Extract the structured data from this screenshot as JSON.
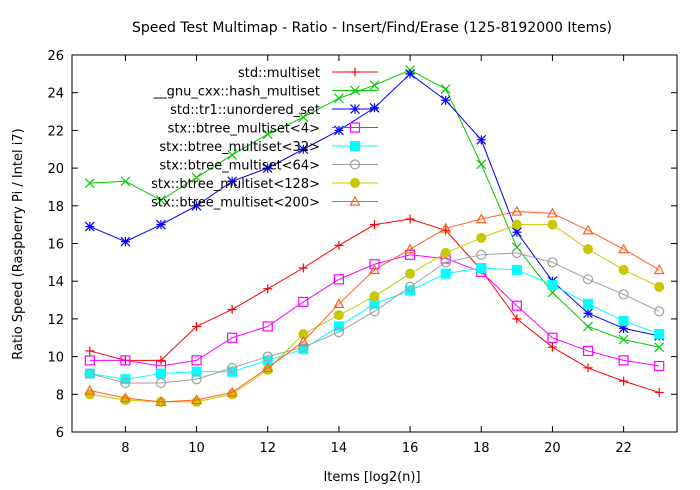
{
  "chart_data": {
    "type": "line",
    "title": "Speed Test Multimap - Ratio - Insert/Find/Erase (125-8192000 Items)",
    "xlabel": "Items [log2(n)]",
    "ylabel": "Ratio Speed (Raspberry Pi / Intel i7)",
    "xlim": [
      6.5,
      23.5
    ],
    "ylim": [
      6,
      26
    ],
    "xticks": [
      8,
      10,
      12,
      14,
      16,
      18,
      20,
      22
    ],
    "yticks": [
      6,
      8,
      10,
      12,
      14,
      16,
      18,
      20,
      22,
      24,
      26
    ],
    "legend_position": "top-left",
    "x": [
      7,
      8,
      9,
      10,
      11,
      12,
      13,
      14,
      15,
      16,
      17,
      18,
      19,
      20,
      21,
      22,
      23
    ],
    "series": [
      {
        "name": "std::multiset",
        "color": "#ff0000",
        "marker": "plus",
        "values": [
          10.3,
          9.8,
          9.8,
          11.6,
          12.5,
          13.6,
          14.7,
          15.9,
          17.0,
          17.3,
          16.7,
          14.6,
          12.0,
          10.5,
          9.4,
          8.7,
          8.1
        ]
      },
      {
        "name": "__gnu_cxx::hash_multiset",
        "color": "#00cc00",
        "marker": "cross",
        "values": [
          19.2,
          19.3,
          18.3,
          19.5,
          20.7,
          21.8,
          22.7,
          23.7,
          24.4,
          25.2,
          24.2,
          20.2,
          15.8,
          13.4,
          11.6,
          10.9,
          10.5
        ]
      },
      {
        "name": "std::tr1::unordered_set",
        "color": "#0000ff",
        "marker": "star",
        "values": [
          16.9,
          16.1,
          17.0,
          18.0,
          19.3,
          20.0,
          21.0,
          22.0,
          23.2,
          25.0,
          23.6,
          21.5,
          16.6,
          14.0,
          12.3,
          11.5,
          11.1
        ]
      },
      {
        "name": "stx::btree_multiset<4>",
        "color": "#ff00ff",
        "marker": "open-square",
        "values": [
          9.8,
          9.8,
          9.5,
          9.8,
          11.0,
          11.6,
          12.9,
          14.1,
          14.9,
          15.4,
          15.2,
          14.5,
          12.7,
          11.0,
          10.3,
          9.8,
          9.5
        ]
      },
      {
        "name": "stx::btree_multiset<32>",
        "color": "#00ffff",
        "marker": "filled-square",
        "values": [
          9.1,
          8.8,
          9.1,
          9.2,
          9.2,
          9.8,
          10.4,
          11.6,
          12.8,
          13.5,
          14.4,
          14.7,
          14.6,
          13.8,
          12.8,
          11.9,
          11.2
        ]
      },
      {
        "name": "stx::btree_multiset<64>",
        "color": "#a0a0a4",
        "marker": "open-circle",
        "values": [
          9.1,
          8.6,
          8.6,
          8.8,
          9.4,
          10.0,
          10.5,
          11.3,
          12.4,
          13.7,
          15.0,
          15.4,
          15.5,
          15.0,
          14.1,
          13.3,
          12.4
        ]
      },
      {
        "name": "stx::btree_multiset<128>",
        "color": "#c8c800",
        "marker": "filled-circle",
        "values": [
          8.0,
          7.7,
          7.6,
          7.6,
          8.0,
          9.3,
          11.2,
          12.2,
          13.2,
          14.4,
          15.5,
          16.3,
          17.0,
          17.0,
          15.7,
          14.6,
          13.7
        ]
      },
      {
        "name": "stx::btree_multiset<200>",
        "color": "#ff6020",
        "marker": "open-triangle",
        "values": [
          8.2,
          7.8,
          7.6,
          7.7,
          8.1,
          9.4,
          10.8,
          12.8,
          14.6,
          15.7,
          16.8,
          17.3,
          17.7,
          17.6,
          16.7,
          15.7,
          14.6
        ]
      }
    ]
  }
}
